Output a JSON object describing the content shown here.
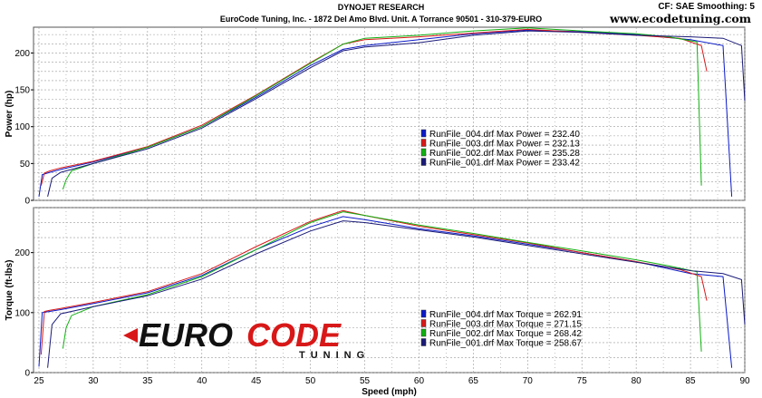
{
  "header": {
    "title": "DYNOJET RESEARCH",
    "subtitle": "EuroCode Tuning, Inc. - 1872 Del Amo Blvd. Unit. A Torrance 90501 - 310-379-EURO",
    "settings": "CF: SAE  Smoothing: 5",
    "website": "www.ecodetuning.com"
  },
  "logo": {
    "word1": "EURO",
    "word2": "CODE",
    "tagline": "TUNING"
  },
  "colors": {
    "run004": "#0a1ac8",
    "run003": "#d81818",
    "run002": "#10b010",
    "run001": "#1a1a78",
    "grid": "#9a9a9a"
  },
  "chart_data": [
    {
      "type": "line",
      "xlabel": "Speed (mph)",
      "ylabel": "Power (hp)",
      "xlim": [
        24.5,
        90
      ],
      "ylim": [
        0,
        235
      ],
      "x_ticks": [
        25,
        30,
        35,
        40,
        45,
        50,
        55,
        60,
        65,
        70,
        75,
        80,
        85,
        90
      ],
      "y_ticks": [
        0,
        50,
        100,
        150,
        200
      ],
      "grid": true,
      "legend_position": "center-right",
      "legend": [
        "RunFile_004.drf Max Power = 232.40",
        "RunFile_003.drf Max Power = 232.13",
        "RunFile_002.drf Max Power = 235.28",
        "RunFile_001.drf Max Power = 233.42"
      ],
      "series": [
        {
          "name": "RunFile_004.drf",
          "color_key": "run004",
          "x": [
            25,
            25.3,
            26,
            27,
            30,
            35,
            40,
            45,
            50,
            53,
            55,
            60,
            65,
            70,
            75,
            80,
            85,
            88,
            88.8
          ],
          "y": [
            5,
            35,
            38,
            42,
            52,
            72,
            100,
            140,
            183,
            205,
            210,
            218,
            226,
            231,
            229,
            225,
            218,
            210,
            5
          ]
        },
        {
          "name": "RunFile_003.drf",
          "color_key": "run003",
          "x": [
            25.2,
            25.5,
            26,
            27,
            30,
            35,
            40,
            45,
            50,
            53,
            55,
            60,
            65,
            70,
            75,
            80,
            84,
            86,
            86.5
          ],
          "y": [
            20,
            37,
            40,
            44,
            53,
            73,
            102,
            143,
            187,
            212,
            218,
            222,
            227,
            232,
            228,
            224,
            220,
            210,
            175
          ]
        },
        {
          "name": "RunFile_002.drf",
          "color_key": "run002",
          "x": [
            27.2,
            27.5,
            28,
            30,
            35,
            40,
            45,
            50,
            53,
            55,
            60,
            65,
            70,
            75,
            80,
            83,
            85.6,
            86
          ],
          "y": [
            15,
            28,
            40,
            50,
            72,
            100,
            142,
            186,
            212,
            220,
            224,
            230,
            234,
            230,
            226,
            222,
            215,
            20
          ]
        },
        {
          "name": "RunFile_001.drf",
          "color_key": "run001",
          "x": [
            25.8,
            26.2,
            27,
            30,
            35,
            40,
            45,
            50,
            53,
            55,
            60,
            65,
            70,
            75,
            80,
            85,
            88,
            89.7,
            90
          ],
          "y": [
            5,
            30,
            38,
            50,
            70,
            98,
            138,
            180,
            203,
            208,
            214,
            224,
            230,
            228,
            224,
            222,
            220,
            210,
            135
          ]
        }
      ]
    },
    {
      "type": "line",
      "xlabel": "Speed (mph)",
      "ylabel": "Torque (ft-lbs)",
      "xlim": [
        24.5,
        90
      ],
      "ylim": [
        0,
        275
      ],
      "x_ticks": [
        25,
        30,
        35,
        40,
        45,
        50,
        55,
        60,
        65,
        70,
        75,
        80,
        85,
        90
      ],
      "y_ticks": [
        0,
        100,
        200
      ],
      "grid": true,
      "legend_position": "bottom-center",
      "legend": [
        "RunFile_004.drf Max Torque = 262.91",
        "RunFile_003.drf Max Torque = 271.15",
        "RunFile_002.drf Max Torque = 268.42",
        "RunFile_001.drf Max Torque = 258.67"
      ],
      "series": [
        {
          "name": "RunFile_004.drf",
          "color_key": "run004",
          "x": [
            25,
            25.3,
            26,
            27,
            30,
            35,
            40,
            45,
            50,
            53,
            55,
            60,
            65,
            70,
            75,
            80,
            85,
            88,
            88.8
          ],
          "y": [
            10,
            100,
            102,
            105,
            115,
            133,
            162,
            205,
            243,
            260,
            255,
            240,
            228,
            214,
            200,
            185,
            165,
            160,
            8
          ]
        },
        {
          "name": "RunFile_003.drf",
          "color_key": "run003",
          "x": [
            25.2,
            25.5,
            26,
            27,
            30,
            35,
            40,
            45,
            50,
            53,
            55,
            60,
            65,
            70,
            75,
            80,
            84,
            86,
            86.5
          ],
          "y": [
            30,
            102,
            104,
            107,
            117,
            135,
            165,
            210,
            252,
            270,
            262,
            244,
            230,
            216,
            200,
            185,
            172,
            160,
            120
          ]
        },
        {
          "name": "RunFile_002.drf",
          "color_key": "run002",
          "x": [
            27.2,
            27.5,
            28,
            30,
            35,
            40,
            45,
            50,
            53,
            55,
            60,
            65,
            70,
            75,
            80,
            83,
            85.6,
            86
          ],
          "y": [
            40,
            75,
            95,
            110,
            130,
            160,
            205,
            250,
            268,
            262,
            246,
            232,
            217,
            203,
            188,
            178,
            168,
            35
          ]
        },
        {
          "name": "RunFile_001.drf",
          "color_key": "run001",
          "x": [
            25.8,
            26.2,
            27,
            30,
            35,
            40,
            45,
            50,
            53,
            55,
            60,
            65,
            70,
            75,
            80,
            85,
            88,
            89.7,
            90
          ],
          "y": [
            8,
            80,
            98,
            110,
            128,
            156,
            198,
            236,
            253,
            250,
            238,
            226,
            212,
            198,
            184,
            170,
            165,
            155,
            80
          ]
        }
      ]
    }
  ]
}
